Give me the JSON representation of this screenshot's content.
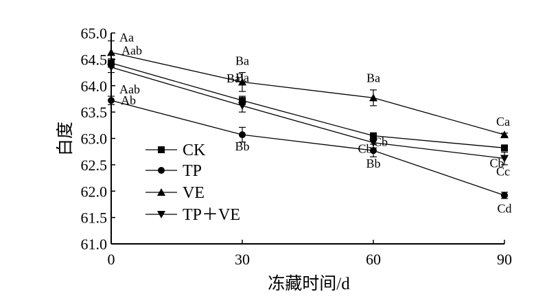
{
  "chart_data": {
    "type": "line",
    "xlabel": "冻藏时间/d",
    "ylabel": "白度",
    "x": [
      0,
      30,
      60,
      90
    ],
    "xlim": [
      0,
      90
    ],
    "ylim": [
      61.0,
      65.0
    ],
    "x_ticks": [
      "0",
      "30",
      "60",
      "90"
    ],
    "y_ticks": [
      "61.0",
      "61.5",
      "62.0",
      "62.5",
      "63.0",
      "63.5",
      "64.0",
      "64.5",
      "65.0"
    ],
    "grid": false,
    "legend_position": "bottom-left",
    "series": [
      {
        "name": "CK",
        "marker": "square",
        "values": [
          64.43,
          63.72,
          63.05,
          62.82
        ],
        "errors": [
          0.08,
          0.08,
          0.04,
          0.05
        ],
        "labels": [
          "Aab",
          "Ba",
          "Cb",
          "Cb"
        ]
      },
      {
        "name": "TP",
        "marker": "circle",
        "values": [
          63.72,
          63.07,
          62.77,
          61.92
        ],
        "errors": [
          0.08,
          0.14,
          0.12,
          0.06
        ],
        "labels": [
          "Ab",
          "Bb",
          "Bb",
          "Cd"
        ]
      },
      {
        "name": "VE",
        "marker": "triangle-up",
        "values": [
          64.63,
          64.07,
          63.77,
          63.07
        ],
        "errors": [
          0.22,
          0.18,
          0.15,
          0.03
        ],
        "labels": [
          "Aa",
          "Ba",
          "Ba",
          "Ca"
        ]
      },
      {
        "name": "TP＋VE",
        "marker": "triangle-down",
        "values": [
          64.35,
          63.62,
          62.92,
          62.62
        ],
        "errors": [
          0.1,
          0.12,
          0.1,
          0.12
        ],
        "labels": [
          "Aab",
          "Ba",
          "Cb",
          "Cc"
        ]
      }
    ]
  }
}
